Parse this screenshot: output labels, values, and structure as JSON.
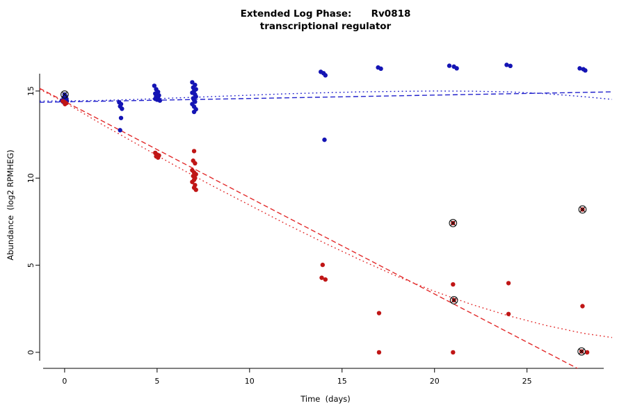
{
  "chart_data": {
    "type": "scatter",
    "title": "Extended Log Phase:      Rv0818",
    "subtitle": "transcriptional regulator",
    "xlabel": "Time  (days)",
    "ylabel": "Abundance  (log2 RPMHEG)",
    "xlim": [
      -1.35,
      29.6
    ],
    "ylim": [
      -0.92,
      17.83
    ],
    "xticks": [
      0,
      5,
      10,
      15,
      20,
      25
    ],
    "yticks": [
      0,
      5,
      10,
      15
    ],
    "grid": false,
    "legend": "none",
    "colors": {
      "blue_points": "#1414b4",
      "red_points": "#c01616",
      "blue_lines": "#2020cc",
      "red_lines": "#e22a2a",
      "circled": "#111111"
    },
    "series": [
      {
        "name": "blue-condition",
        "color_key": "blue_points",
        "points": [
          [
            -0.15,
            14.45
          ],
          [
            0,
            14.8
          ],
          [
            0.05,
            14.7
          ],
          [
            -0.05,
            14.62
          ],
          [
            0.1,
            14.55
          ],
          [
            0,
            14.5
          ],
          [
            0.12,
            14.42
          ],
          [
            -0.08,
            14.38
          ],
          [
            0.04,
            14.33
          ],
          [
            2.95,
            14.35
          ],
          [
            3.05,
            14.25
          ],
          [
            3,
            14.12
          ],
          [
            3.1,
            13.98
          ],
          [
            3.05,
            13.45
          ],
          [
            3,
            12.75
          ],
          [
            4.85,
            15.3
          ],
          [
            4.95,
            15.1
          ],
          [
            5.05,
            14.95
          ],
          [
            4.9,
            14.85
          ],
          [
            5,
            14.8
          ],
          [
            5.1,
            14.75
          ],
          [
            4.95,
            14.68
          ],
          [
            5.05,
            14.6
          ],
          [
            4.9,
            14.55
          ],
          [
            5,
            14.5
          ],
          [
            5.15,
            14.45
          ],
          [
            6.9,
            15.5
          ],
          [
            7.05,
            15.35
          ],
          [
            6.95,
            15.2
          ],
          [
            7.1,
            15.1
          ],
          [
            7,
            15.0
          ],
          [
            6.9,
            14.9
          ],
          [
            7.05,
            14.8
          ],
          [
            7.1,
            14.68
          ],
          [
            6.95,
            14.58
          ],
          [
            7,
            14.48
          ],
          [
            7.05,
            14.38
          ],
          [
            6.9,
            14.25
          ],
          [
            7,
            14.1
          ],
          [
            7.1,
            13.95
          ],
          [
            7,
            13.8
          ],
          [
            13.85,
            16.1
          ],
          [
            14,
            16.02
          ],
          [
            14.1,
            15.9
          ],
          [
            14.05,
            12.2
          ],
          [
            16.95,
            16.35
          ],
          [
            17.1,
            16.28
          ],
          [
            20.8,
            16.45
          ],
          [
            21.05,
            16.4
          ],
          [
            21.2,
            16.3
          ],
          [
            23.9,
            16.5
          ],
          [
            24.1,
            16.44
          ],
          [
            27.85,
            16.3
          ],
          [
            28.05,
            16.25
          ],
          [
            28.15,
            16.18
          ]
        ]
      },
      {
        "name": "red-condition",
        "color_key": "red_points",
        "points": [
          [
            -0.1,
            14.42
          ],
          [
            0,
            14.36
          ],
          [
            0.08,
            14.3
          ],
          [
            0.02,
            14.25
          ],
          [
            4.9,
            11.45
          ],
          [
            5,
            11.35
          ],
          [
            5.1,
            11.3
          ],
          [
            4.95,
            11.25
          ],
          [
            5.05,
            11.18
          ],
          [
            7,
            11.55
          ],
          [
            6.95,
            11.0
          ],
          [
            7.05,
            10.85
          ],
          [
            6.9,
            10.45
          ],
          [
            7,
            10.32
          ],
          [
            7.1,
            10.22
          ],
          [
            6.95,
            10.12
          ],
          [
            7.05,
            10.0
          ],
          [
            7,
            9.9
          ],
          [
            6.9,
            9.78
          ],
          [
            7.05,
            9.6
          ],
          [
            7,
            9.45
          ],
          [
            7.1,
            9.33
          ],
          [
            13.95,
            5.02
          ],
          [
            13.9,
            4.28
          ],
          [
            14.1,
            4.18
          ],
          [
            17,
            2.25
          ],
          [
            17,
            0.0
          ],
          [
            21,
            7.42
          ],
          [
            21,
            3.9
          ],
          [
            21.05,
            2.99
          ],
          [
            21,
            0.0
          ],
          [
            24,
            3.97
          ],
          [
            24,
            2.2
          ],
          [
            28,
            8.2
          ],
          [
            28,
            2.65
          ],
          [
            27.95,
            0.05
          ],
          [
            28.25,
            0.0
          ]
        ]
      }
    ],
    "circled_points": [
      [
        0,
        14.8
      ],
      [
        21,
        7.42
      ],
      [
        21.05,
        2.99
      ],
      [
        28,
        8.2
      ],
      [
        27.95,
        0.05
      ]
    ],
    "trend_lines": [
      {
        "name": "blue-dashed-linear-fit",
        "color_key": "blue_lines",
        "dash": "7,4",
        "points": [
          [
            -1.35,
            14.35
          ],
          [
            29.6,
            14.95
          ]
        ]
      },
      {
        "name": "blue-dotted-smooth-fit",
        "color_key": "blue_lines",
        "dash": "1.8,3.8",
        "points": [
          [
            -1.35,
            14.42
          ],
          [
            0,
            14.43
          ],
          [
            2,
            14.46
          ],
          [
            4,
            14.52
          ],
          [
            6,
            14.6
          ],
          [
            8,
            14.68
          ],
          [
            10,
            14.76
          ],
          [
            12,
            14.84
          ],
          [
            14,
            14.9
          ],
          [
            16,
            14.95
          ],
          [
            18,
            14.98
          ],
          [
            20,
            15.0
          ],
          [
            22,
            14.99
          ],
          [
            24,
            14.95
          ],
          [
            26,
            14.85
          ],
          [
            28,
            14.68
          ],
          [
            29.6,
            14.52
          ]
        ]
      },
      {
        "name": "red-dashed-linear-fit",
        "color_key": "red_lines",
        "dash": "7,4",
        "points": [
          [
            -1.35,
            15.15
          ],
          [
            29.6,
            -1.96
          ]
        ]
      },
      {
        "name": "red-dotted-smooth-fit",
        "color_key": "red_lines",
        "dash": "1.8,3.8",
        "points": [
          [
            -1.35,
            15.1
          ],
          [
            0,
            14.35
          ],
          [
            2,
            13.1
          ],
          [
            4,
            11.9
          ],
          [
            6,
            10.7
          ],
          [
            8,
            9.55
          ],
          [
            10,
            8.45
          ],
          [
            12,
            7.35
          ],
          [
            14,
            6.3
          ],
          [
            16,
            5.3
          ],
          [
            18,
            4.35
          ],
          [
            20,
            3.5
          ],
          [
            22,
            2.75
          ],
          [
            24,
            2.1
          ],
          [
            26,
            1.55
          ],
          [
            28,
            1.1
          ],
          [
            29.6,
            0.85
          ]
        ]
      }
    ]
  }
}
